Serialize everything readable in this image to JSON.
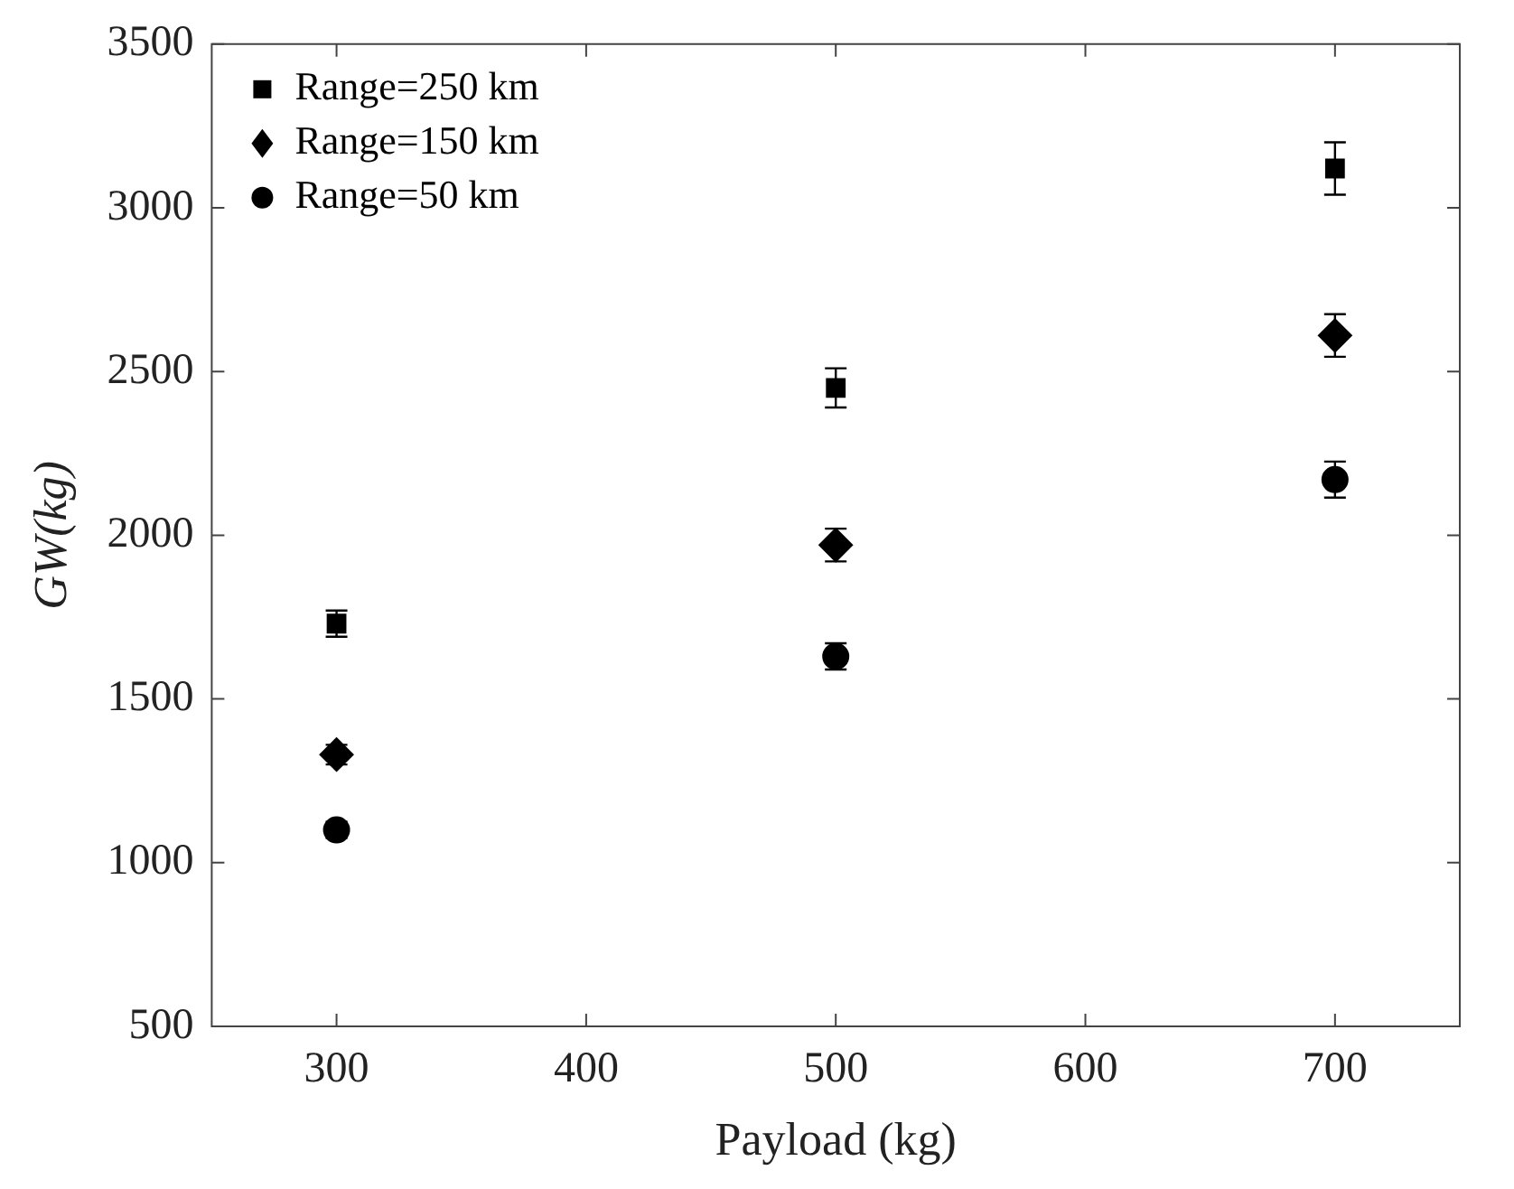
{
  "chart_data": {
    "type": "scatter",
    "xlabel": "Payload (kg)",
    "ylabel": "GW(kg)",
    "x": [
      300,
      500,
      700
    ],
    "series": [
      {
        "name": "Range=250 km",
        "color": "#000000",
        "marker": "square",
        "values": [
          1730,
          2450,
          3120
        ],
        "errors": [
          40,
          60,
          80
        ]
      },
      {
        "name": "Range=150 km",
        "color": "#000000",
        "marker": "diamond",
        "values": [
          1330,
          1970,
          2610
        ],
        "errors": [
          30,
          50,
          65
        ]
      },
      {
        "name": "Range=50 km",
        "color": "#000000",
        "marker": "circle",
        "values": [
          1100,
          1630,
          2170
        ],
        "errors": [
          25,
          40,
          55
        ]
      }
    ],
    "xlim": [
      250,
      750
    ],
    "xticks": [
      300,
      400,
      500,
      600,
      700
    ],
    "ylim": [
      500,
      3500
    ],
    "yticks": [
      500,
      1000,
      1500,
      2000,
      2500,
      3000,
      3500
    ],
    "grid": false,
    "legend": "top left"
  }
}
